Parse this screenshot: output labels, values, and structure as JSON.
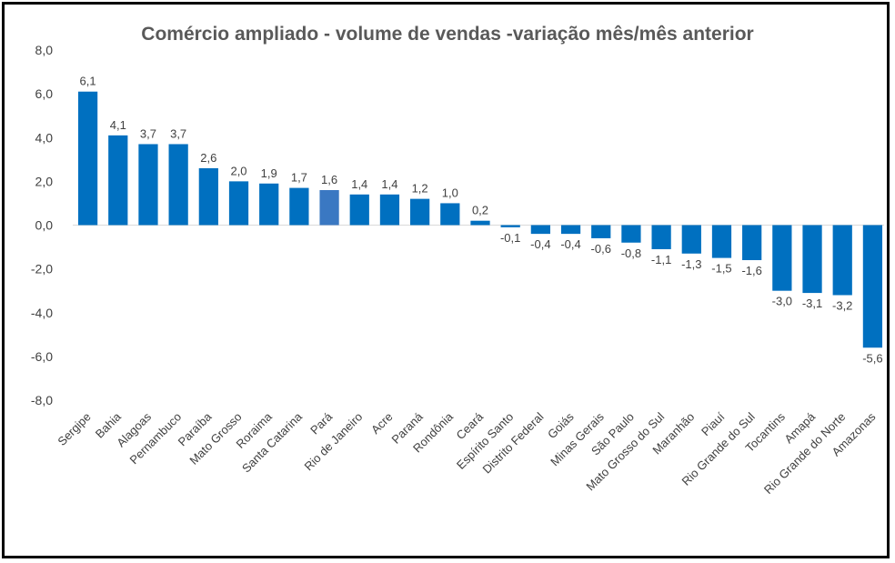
{
  "chart_data": {
    "type": "bar",
    "title": "Comércio ampliado - volume de vendas -variação mês/mês anterior",
    "xlabel": "",
    "ylabel": "",
    "ylim": [
      -8,
      8
    ],
    "yticks": [
      "8,0",
      "6,0",
      "4,0",
      "2,0",
      "0,0",
      "-2,0",
      "-4,0",
      "-6,0",
      "-8,0"
    ],
    "ytick_values": [
      8,
      6,
      4,
      2,
      0,
      -2,
      -4,
      -6,
      -8
    ],
    "grid": false,
    "legend": "none",
    "bar_color": "#0070c0",
    "highlight_color": "#3a78c2",
    "highlight_index": 8,
    "categories": [
      "Sergipe",
      "Bahia",
      "Alagoas",
      "Pernambuco",
      "Paraíba",
      "Mato Grosso",
      "Roraima",
      "Santa Catarina",
      "Pará",
      "Rio de Janeiro",
      "Acre",
      "Paraná",
      "Rondônia",
      "Ceará",
      "Espírito Santo",
      "Distrito Federal",
      "Goiás",
      "Minas Gerais",
      "São Paulo",
      "Mato Grosso do Sul",
      "Maranhão",
      "Piauí",
      "Rio Grande do Sul",
      "Tocantins",
      "Amapá",
      "Rio Grande do Norte",
      "Amazonas"
    ],
    "values": [
      6.1,
      4.1,
      3.7,
      3.7,
      2.6,
      2.0,
      1.9,
      1.7,
      1.6,
      1.4,
      1.4,
      1.2,
      1.0,
      0.2,
      -0.1,
      -0.4,
      -0.4,
      -0.6,
      -0.8,
      -1.1,
      -1.3,
      -1.5,
      -1.6,
      -3.0,
      -3.1,
      -3.2,
      -5.6
    ],
    "data_labels": [
      "6,1",
      "4,1",
      "3,7",
      "3,7",
      "2,6",
      "2,0",
      "1,9",
      "1,7",
      "1,6",
      "1,4",
      "1,4",
      "1,2",
      "1,0",
      "0,2",
      "-0,1",
      "-0,4",
      "-0,4",
      "-0,6",
      "-0,8",
      "-1,1",
      "-1,3",
      "-1,5",
      "-1,6",
      "-3,0",
      "-3,1",
      "-3,2",
      "-5,6"
    ]
  }
}
